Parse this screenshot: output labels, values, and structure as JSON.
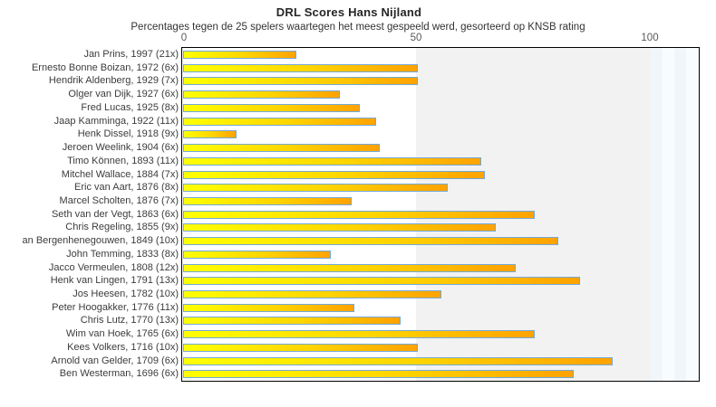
{
  "chart_data": {
    "type": "bar",
    "orientation": "horizontal",
    "title": "DRL Scores Hans Nijland",
    "subtitle": "Percentages tegen de 25 spelers waartegen het meest gespeeld werd, gesorteerd op KNSB rating",
    "xlabel": "",
    "ylabel": "",
    "xlim": [
      0,
      110
    ],
    "x_ticks": [
      0,
      50,
      100
    ],
    "x_tick_labels": [
      "0",
      "50",
      "100"
    ],
    "grid": "background bands: white 0-50, light gray 50-100, pale blue stripes beyond 100",
    "legend": "none",
    "categories": [
      "Jan Prins, 1997 (21x)",
      "Ernesto Bonne Boizan, 1972 (6x)",
      "Hendrik Aldenberg, 1929 (7x)",
      "Olger van Dijk, 1927 (6x)",
      "Fred Lucas, 1925 (8x)",
      "Jaap Kamminga, 1922 (11x)",
      "Henk Dissel, 1918 (9x)",
      "Jeroen Weelink, 1904 (6x)",
      "Timo Können, 1893 (11x)",
      "Mitchel Wallace, 1884 (7x)",
      "Eric van Aart, 1876 (8x)",
      "Marcel Scholten, 1876 (7x)",
      "Seth van der Vegt, 1863 (6x)",
      "Chris Regeling, 1855 (9x)",
      "an Bergenhenegouwen, 1849 (10x)",
      "John Temming, 1833 (8x)",
      "Jacco Vermeulen, 1808 (12x)",
      "Henk van Lingen, 1791 (13x)",
      "Jos Heesen, 1782 (10x)",
      "Peter Hoogakker, 1776 (11x)",
      "Chris Lutz, 1770 (13x)",
      "Wim van Hoek, 1765 (6x)",
      "Kees Volkers, 1716 (10x)",
      "Arnold van Gelder, 1709 (6x)",
      "Ben Westerman, 1696 (6x)"
    ],
    "values": [
      23.8,
      50,
      50,
      33.3,
      37.5,
      40.9,
      11.1,
      41.7,
      63.6,
      64.3,
      56.3,
      35.7,
      75,
      66.7,
      80,
      31.3,
      70.8,
      84.6,
      55,
      36.4,
      46.2,
      75,
      50,
      91.7,
      83.3
    ],
    "colors": {
      "bar_gradient_start": "#ffff00",
      "bar_gradient_end": "#ffa200",
      "bar_border": "#74a9d6",
      "band_mid": "#f2f2f2",
      "band_right": "#f1f6fa",
      "plot_border": "#000000",
      "title_text": "#262626",
      "label_text": "#3c3c3c",
      "tick_text": "#595959"
    }
  }
}
